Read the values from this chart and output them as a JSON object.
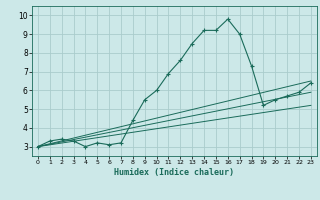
{
  "xlabel": "Humidex (Indice chaleur)",
  "bg_color": "#cce8e8",
  "grid_color": "#aacccc",
  "line_color": "#1a6b5a",
  "xlim": [
    -0.5,
    23.5
  ],
  "ylim": [
    2.5,
    10.5
  ],
  "xticks": [
    0,
    1,
    2,
    3,
    4,
    5,
    6,
    7,
    8,
    9,
    10,
    11,
    12,
    13,
    14,
    15,
    16,
    17,
    18,
    19,
    20,
    21,
    22,
    23
  ],
  "yticks": [
    3,
    4,
    5,
    6,
    7,
    8,
    9,
    10
  ],
  "series": [
    [
      0,
      3.0
    ],
    [
      1,
      3.3
    ],
    [
      2,
      3.4
    ],
    [
      3,
      3.3
    ],
    [
      4,
      3.0
    ],
    [
      5,
      3.2
    ],
    [
      6,
      3.1
    ],
    [
      7,
      3.2
    ],
    [
      8,
      4.4
    ],
    [
      9,
      5.5
    ],
    [
      10,
      6.0
    ],
    [
      11,
      6.9
    ],
    [
      12,
      7.6
    ],
    [
      13,
      8.5
    ],
    [
      14,
      9.2
    ],
    [
      15,
      9.2
    ],
    [
      16,
      9.8
    ],
    [
      17,
      9.0
    ],
    [
      18,
      7.3
    ],
    [
      19,
      5.2
    ],
    [
      20,
      5.5
    ],
    [
      21,
      5.7
    ],
    [
      22,
      5.9
    ],
    [
      23,
      6.4
    ]
  ],
  "linear_series": [
    [
      0,
      3.0
    ],
    [
      23,
      6.5
    ]
  ],
  "linear_series2": [
    [
      0,
      3.0
    ],
    [
      23,
      5.9
    ]
  ],
  "linear_series3": [
    [
      0,
      3.0
    ],
    [
      23,
      5.2
    ]
  ]
}
